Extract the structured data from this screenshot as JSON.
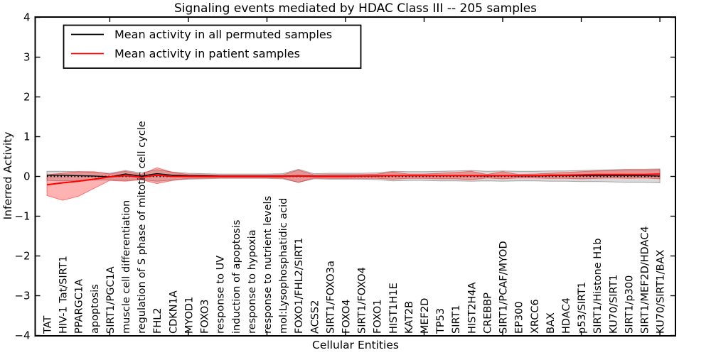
{
  "figure": {
    "title": "Signaling events mediated by HDAC Class III -- 205 samples",
    "xlabel": "Cellular Entities",
    "ylabel": "Inferred Activity"
  },
  "chart_data": {
    "type": "line",
    "title": "Signaling events mediated by HDAC Class III -- 205 samples",
    "xlabel": "Cellular Entities",
    "ylabel": "Inferred Activity",
    "ylim": [
      -4,
      4
    ],
    "yticks": [
      4,
      3,
      2,
      1,
      0,
      -1,
      -2,
      -3,
      -4
    ],
    "xtick_values": [
      5,
      10,
      15,
      20,
      25,
      30,
      35,
      40
    ],
    "grid": false,
    "legend_position": "upper left",
    "zero_line": {
      "y": 0,
      "style": "dotted",
      "color": "#000000"
    },
    "categories": [
      "TAT",
      "HIV-1 Tat/SIRT1",
      "PPARGC1A",
      "apoptosis",
      "SIRT1/PGC1A",
      "muscle cell differentiation",
      "regulation of S phase of mitotic cell cycle",
      "FHL2",
      "CDKN1A",
      "MYOD1",
      "FOXO3",
      "response to UV",
      "induction of apoptosis",
      "response to hypoxia",
      "response to nutrient levels",
      "mol:Lysophosphatidic acid",
      "FOXO1/FHL2/SIRT1",
      "ACSS2",
      "SIRT1/FOXO3a",
      "FOXO4",
      "SIRT1/FOXO4",
      "FOXO1",
      "HIST1H1E",
      "KAT2B",
      "MEF2D",
      "TP53",
      "SIRT1",
      "HIST2H4A",
      "CREBBP",
      "SIRT1/PCAF/MYOD",
      "EP300",
      "XRCC6",
      "BAX",
      "HDAC4",
      "p53/SIRT1",
      "SIRT1/Histone H1b",
      "KU70/SIRT1",
      "SIRT1/p300",
      "SIRT1/MEF2D/HDAC4",
      "KU70/SIRT1/BAX"
    ],
    "series": [
      {
        "name": "Mean activity in all permuted samples",
        "color": "#000000",
        "values": [
          0.03,
          0.03,
          0.02,
          0.01,
          -0.01,
          0.06,
          0.01,
          0.07,
          0.03,
          0.02,
          0.02,
          0.01,
          0.01,
          0.01,
          0.01,
          0.01,
          0.02,
          0.01,
          0.01,
          0.01,
          0.01,
          0.02,
          0.02,
          0.02,
          0.02,
          0.02,
          0.02,
          0.02,
          0.01,
          0.02,
          0.01,
          0.01,
          0.02,
          0.02,
          0.02,
          0.02,
          0.02,
          0.02,
          0.02,
          0.01
        ]
      },
      {
        "name": "Mean activity in patient samples",
        "color": "#ff0000",
        "values": [
          -0.21,
          -0.16,
          -0.12,
          -0.07,
          -0.01,
          0.02,
          -0.02,
          0.03,
          0.0,
          0.0,
          0.0,
          0.0,
          0.0,
          0.0,
          0.0,
          0.0,
          0.01,
          0.0,
          0.0,
          0.0,
          0.01,
          0.01,
          0.02,
          0.02,
          0.02,
          0.02,
          0.02,
          0.02,
          0.02,
          0.02,
          0.02,
          0.02,
          0.03,
          0.03,
          0.04,
          0.05,
          0.05,
          0.05,
          0.05,
          0.06
        ]
      }
    ],
    "bands": [
      {
        "name": "permuted-samples-range",
        "color": "#000000",
        "opacity": 0.15,
        "upper": [
          0.13,
          0.13,
          0.12,
          0.1,
          0.08,
          0.15,
          0.09,
          0.17,
          0.11,
          0.08,
          0.07,
          0.06,
          0.06,
          0.06,
          0.06,
          0.07,
          0.18,
          0.07,
          0.08,
          0.08,
          0.08,
          0.09,
          0.13,
          0.12,
          0.12,
          0.13,
          0.14,
          0.15,
          0.13,
          0.14,
          0.13,
          0.13,
          0.14,
          0.14,
          0.15,
          0.16,
          0.17,
          0.18,
          0.18,
          0.19
        ],
        "lower": [
          -0.1,
          -0.11,
          -0.1,
          -0.09,
          -0.09,
          -0.1,
          -0.08,
          -0.12,
          -0.09,
          -0.07,
          -0.06,
          -0.05,
          -0.05,
          -0.05,
          -0.05,
          -0.06,
          -0.15,
          -0.06,
          -0.07,
          -0.07,
          -0.07,
          -0.08,
          -0.11,
          -0.1,
          -0.1,
          -0.11,
          -0.11,
          -0.12,
          -0.11,
          -0.12,
          -0.11,
          -0.11,
          -0.12,
          -0.12,
          -0.13,
          -0.13,
          -0.14,
          -0.15,
          -0.15,
          -0.16
        ]
      },
      {
        "name": "patient-samples-range",
        "color": "#ff0000",
        "opacity": 0.3,
        "upper": [
          0.04,
          0.08,
          0.12,
          0.12,
          0.06,
          0.13,
          0.05,
          0.22,
          0.1,
          0.05,
          0.04,
          0.03,
          0.03,
          0.03,
          0.03,
          0.04,
          0.16,
          0.04,
          0.05,
          0.05,
          0.05,
          0.06,
          0.11,
          0.06,
          0.06,
          0.08,
          0.1,
          0.13,
          0.05,
          0.12,
          0.05,
          0.06,
          0.08,
          0.1,
          0.12,
          0.14,
          0.15,
          0.16,
          0.16,
          0.17
        ],
        "lower": [
          -0.48,
          -0.6,
          -0.5,
          -0.3,
          -0.1,
          -0.12,
          -0.08,
          -0.18,
          -0.1,
          -0.05,
          -0.04,
          -0.03,
          -0.03,
          -0.03,
          -0.03,
          -0.04,
          -0.15,
          -0.04,
          -0.05,
          -0.05,
          -0.05,
          -0.05,
          -0.07,
          -0.05,
          -0.05,
          -0.06,
          -0.06,
          -0.08,
          -0.04,
          -0.06,
          -0.04,
          -0.04,
          -0.05,
          -0.05,
          -0.06,
          -0.05,
          -0.04,
          -0.05,
          -0.04,
          -0.06
        ]
      }
    ]
  }
}
